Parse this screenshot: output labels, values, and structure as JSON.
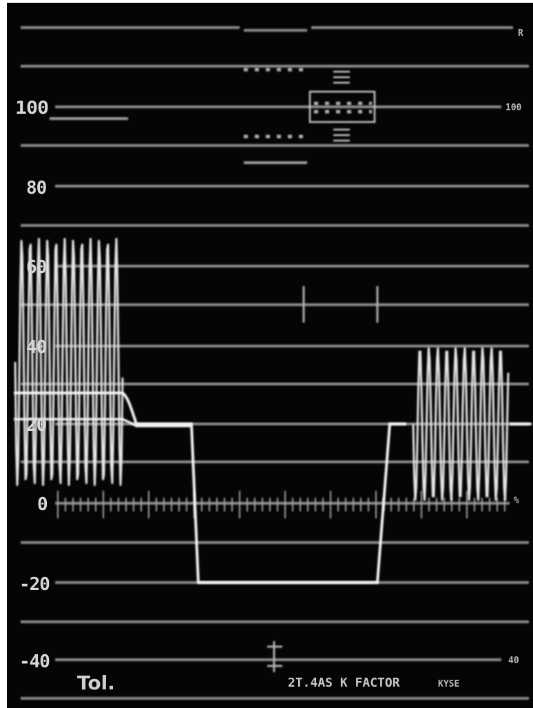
{
  "scale": {
    "left_labels": [
      "100",
      "80",
      "60",
      "40",
      "20",
      "0",
      "-20",
      "-40"
    ],
    "right_labels": [
      "100",
      "40"
    ],
    "top_right_mark": "R",
    "zero_right_mark": "%"
  },
  "bottom_bar": {
    "tol_label": "Tol.",
    "k_factor_label": "2T.4AS K FACTOR",
    "right_code": "KYSE"
  },
  "colors": {
    "background": "#050505",
    "graticule": "#8a8a8a",
    "trace": "#f2f2f2"
  }
}
